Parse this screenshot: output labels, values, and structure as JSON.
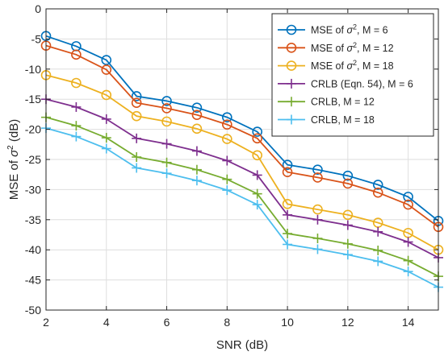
{
  "chart_data": {
    "type": "line",
    "title": "",
    "xlabel": "SNR (dB)",
    "ylabel_prefix": "MSE of ",
    "ylabel_symbol": "σ",
    "ylabel_sup": "2",
    "ylabel_suffix": " (dB)",
    "xlim": [
      2,
      15
    ],
    "ylim": [
      -50,
      0
    ],
    "xticks": [
      2,
      4,
      6,
      8,
      10,
      12,
      14
    ],
    "yticks": [
      0,
      -5,
      -10,
      -15,
      -20,
      -25,
      -30,
      -35,
      -40,
      -45,
      -50
    ],
    "grid": true,
    "legend_position": "top-right",
    "x": [
      2,
      3,
      4,
      5,
      6,
      7,
      8,
      9,
      10,
      11,
      12,
      13,
      14,
      15
    ],
    "series": [
      {
        "name_prefix": "MSE of ",
        "name_symbol": "σ",
        "name_sup": "2",
        "name_suffix": ", M = 6",
        "marker": "circle",
        "color": "#0072bd",
        "values": [
          -4.5,
          -6.2,
          -8.5,
          -14.5,
          -15.3,
          -16.4,
          -18.0,
          -20.4,
          -25.9,
          -26.7,
          -27.7,
          -29.2,
          -31.2,
          -35.2
        ]
      },
      {
        "name_prefix": "MSE of ",
        "name_symbol": "σ",
        "name_sup": "2",
        "name_suffix": ", M = 12",
        "marker": "circle",
        "color": "#d95319",
        "values": [
          -6.1,
          -7.6,
          -10.1,
          -15.6,
          -16.5,
          -17.6,
          -19.2,
          -21.5,
          -27.1,
          -28.0,
          -29.0,
          -30.5,
          -32.5,
          -36.2
        ]
      },
      {
        "name_prefix": "MSE of ",
        "name_symbol": "σ",
        "name_sup": "2",
        "name_suffix": ", M = 18",
        "marker": "circle",
        "color": "#edb120",
        "values": [
          -11.0,
          -12.3,
          -14.3,
          -17.8,
          -18.7,
          -19.9,
          -21.6,
          -24.3,
          -32.4,
          -33.3,
          -34.2,
          -35.5,
          -37.2,
          -40.0
        ]
      },
      {
        "name_prefix": "CRLB (Eqn. 54), M = 6",
        "name_symbol": "",
        "name_sup": "",
        "name_suffix": "",
        "marker": "plus",
        "color": "#7e2f8e",
        "values": [
          -15.0,
          -16.3,
          -18.3,
          -21.5,
          -22.4,
          -23.6,
          -25.2,
          -27.6,
          -34.2,
          -35.0,
          -35.9,
          -37.0,
          -38.7,
          -41.3
        ]
      },
      {
        "name_prefix": "CRLB, M = 12",
        "name_symbol": "",
        "name_sup": "",
        "name_suffix": "",
        "marker": "plus",
        "color": "#77ac30",
        "values": [
          -18.0,
          -19.4,
          -21.4,
          -24.6,
          -25.5,
          -26.7,
          -28.3,
          -30.7,
          -37.3,
          -38.1,
          -39.0,
          -40.1,
          -41.8,
          -44.4
        ]
      },
      {
        "name_prefix": "CRLB, M = 18",
        "name_symbol": "",
        "name_sup": "",
        "name_suffix": "",
        "marker": "plus",
        "color": "#4dbeee",
        "values": [
          -19.8,
          -21.2,
          -23.2,
          -26.4,
          -27.3,
          -28.5,
          -30.1,
          -32.5,
          -39.1,
          -39.9,
          -40.8,
          -41.9,
          -43.6,
          -46.2
        ]
      }
    ]
  }
}
